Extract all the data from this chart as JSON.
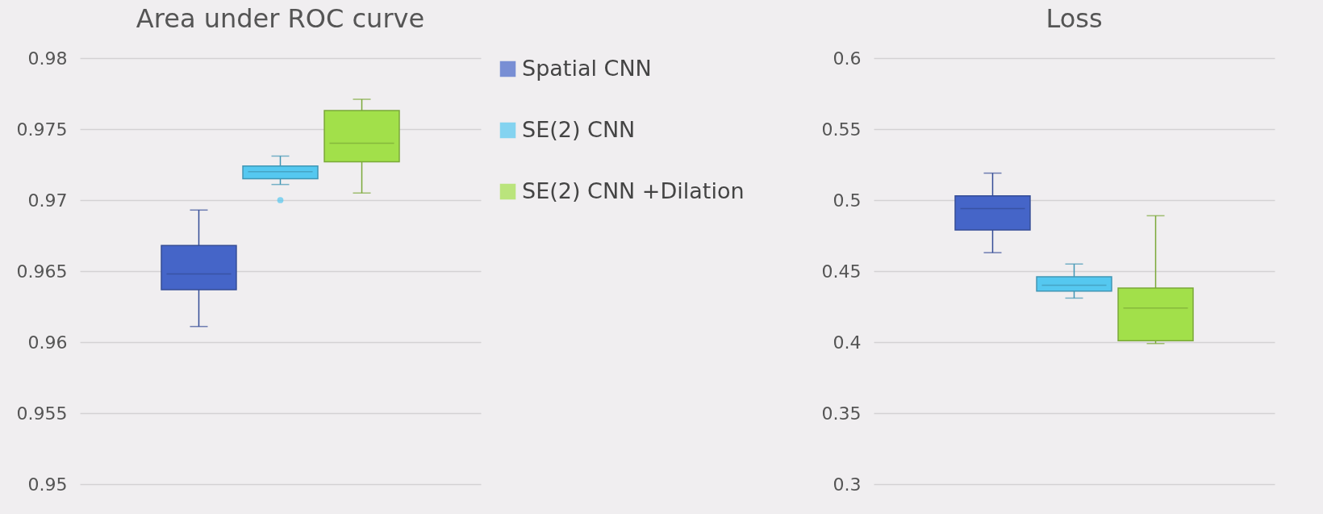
{
  "chart_data": [
    {
      "type": "box",
      "title": "Area under ROC curve",
      "categories": [
        null
      ],
      "ylim": [
        0.95,
        0.98
      ],
      "yticks": [
        0.95,
        0.955,
        0.96,
        0.965,
        0.97,
        0.975,
        0.98
      ],
      "grid": "y",
      "tick_labels": "y",
      "legend": "right",
      "series": [
        {
          "name": "Spatial CNN",
          "color": "#4565c8",
          "boxes": [
            {
              "low": 0.9611,
              "q1": 0.9637,
              "median": 0.9648,
              "q3": 0.9668,
              "high": 0.9693
            }
          ]
        },
        {
          "name": "SE(2) CNN",
          "color": "#55c8f0",
          "boxes": [
            {
              "low": 0.9711,
              "q1": 0.9715,
              "median": 0.972,
              "q3": 0.9724,
              "high": 0.9731,
              "outliers": [
                0.97
              ]
            }
          ]
        },
        {
          "name": "SE(2) CNN +Dilation",
          "color": "#a2e04a",
          "boxes": [
            {
              "low": 0.9705,
              "q1": 0.9727,
              "median": 0.974,
              "q3": 0.9763,
              "high": 0.9771
            }
          ]
        }
      ]
    },
    {
      "type": "box",
      "title": "Loss",
      "categories": [
        null
      ],
      "ylim": [
        0.3,
        0.6
      ],
      "yticks": [
        0.3,
        0.35,
        0.4,
        0.45,
        0.5,
        0.55,
        0.6
      ],
      "grid": "y",
      "tick_labels": "y",
      "series": [
        {
          "name": "Spatial CNN",
          "color": "#4565c8",
          "boxes": [
            {
              "low": 0.463,
              "q1": 0.479,
              "median": 0.494,
              "q3": 0.503,
              "high": 0.519
            }
          ]
        },
        {
          "name": "SE(2) CNN",
          "color": "#55c8f0",
          "boxes": [
            {
              "low": 0.431,
              "q1": 0.436,
              "median": 0.44,
              "q3": 0.446,
              "high": 0.455
            }
          ]
        },
        {
          "name": "SE(2) CNN +Dilation",
          "color": "#a2e04a",
          "boxes": [
            {
              "low": 0.399,
              "q1": 0.401,
              "median": 0.424,
              "q3": 0.438,
              "high": 0.489
            }
          ]
        }
      ]
    }
  ]
}
